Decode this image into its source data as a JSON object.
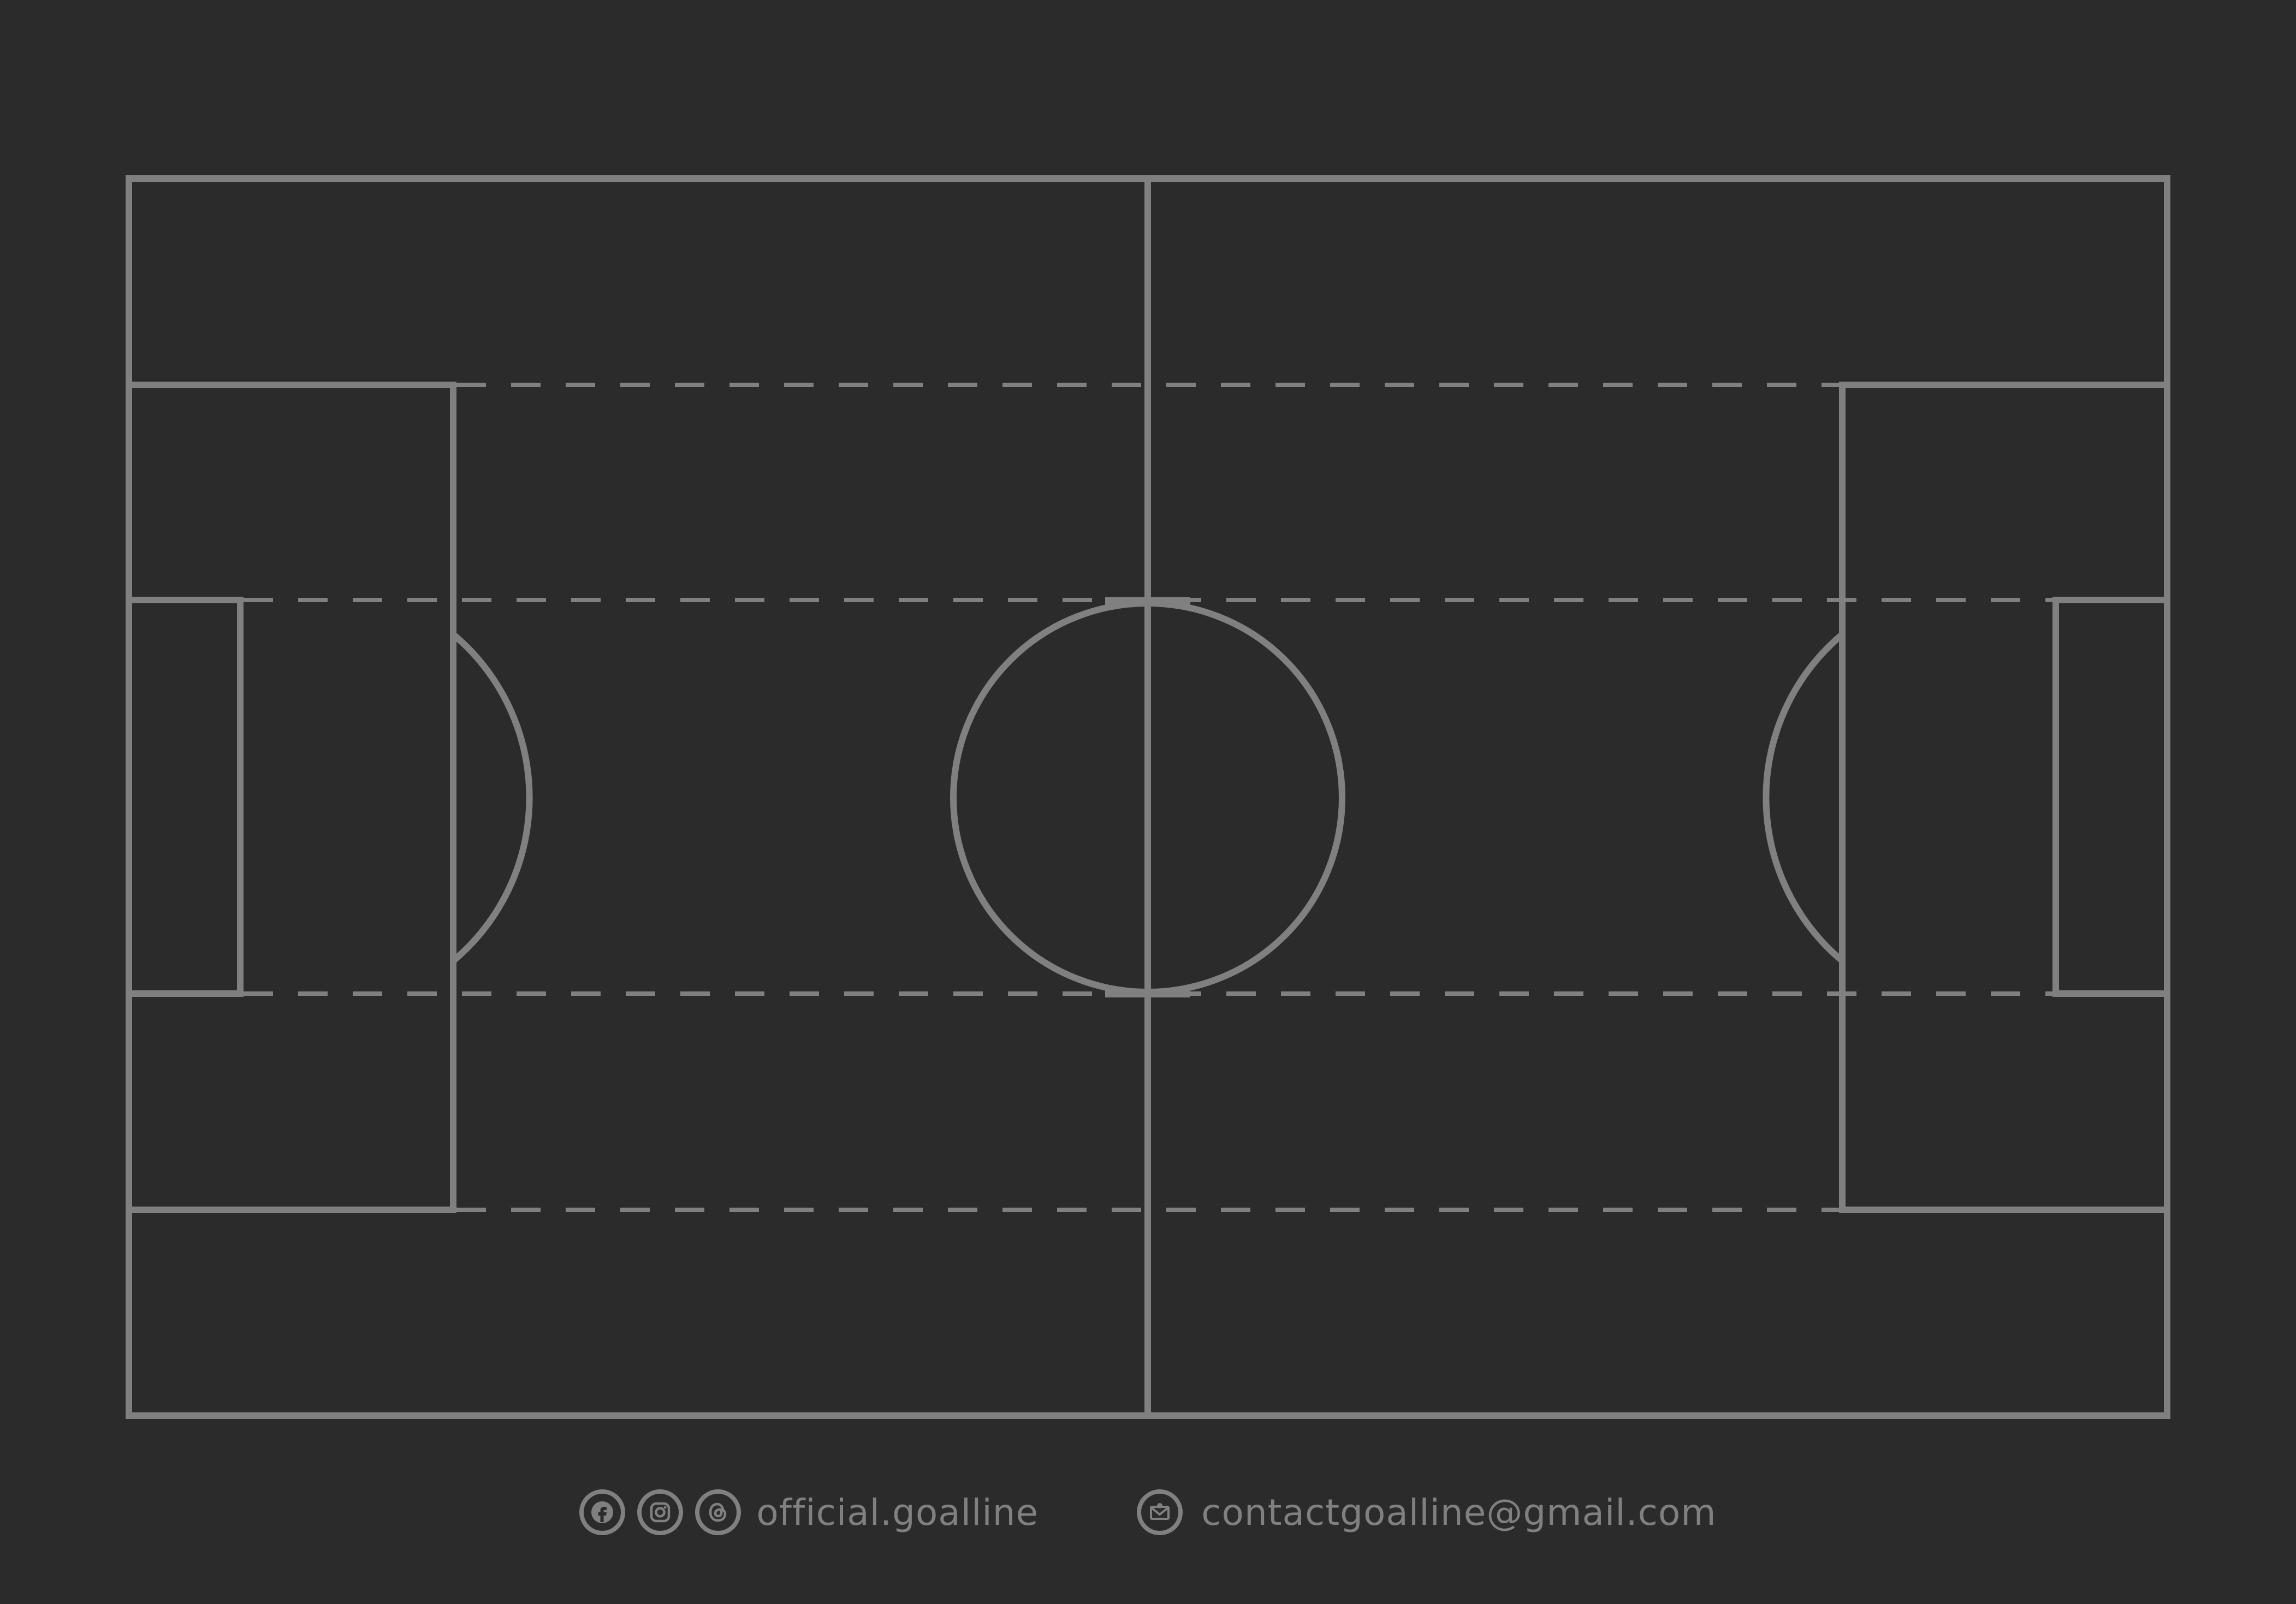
{
  "colors": {
    "background": "#2b2b2b",
    "line": "#808080"
  },
  "footer": {
    "social_icons": [
      "facebook-icon",
      "instagram-icon",
      "threads-icon"
    ],
    "handle": "official.goalline",
    "email_icon": "envelope-icon",
    "email": "contactgoalline@gmail.com"
  }
}
